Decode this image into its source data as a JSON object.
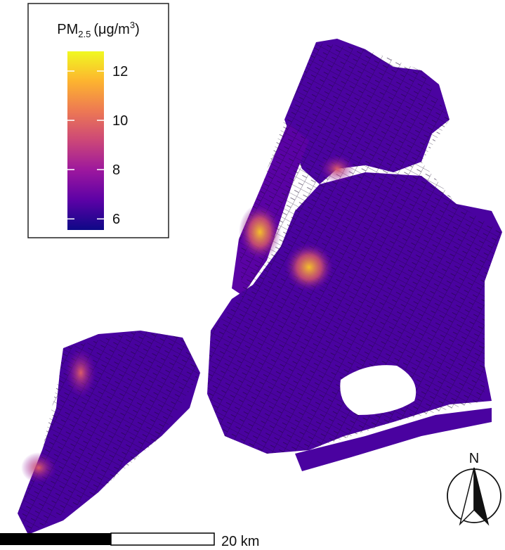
{
  "legend": {
    "title": {
      "base": "PM",
      "sub": "2.5",
      "unit": "(μg/m",
      "sup": "3",
      "close": ")"
    },
    "colorbar": {
      "lim": [
        5.55,
        12.8
      ],
      "ticks": [
        6,
        8,
        10,
        12
      ],
      "colors": [
        "#0d0887",
        "#5c01a6",
        "#9c179e",
        "#cc4778",
        "#ed7953",
        "#fdb42f",
        "#f0f921"
      ]
    }
  },
  "scale_bar": {
    "label": "20 km"
  },
  "north_arrow": {
    "label": "N"
  }
}
